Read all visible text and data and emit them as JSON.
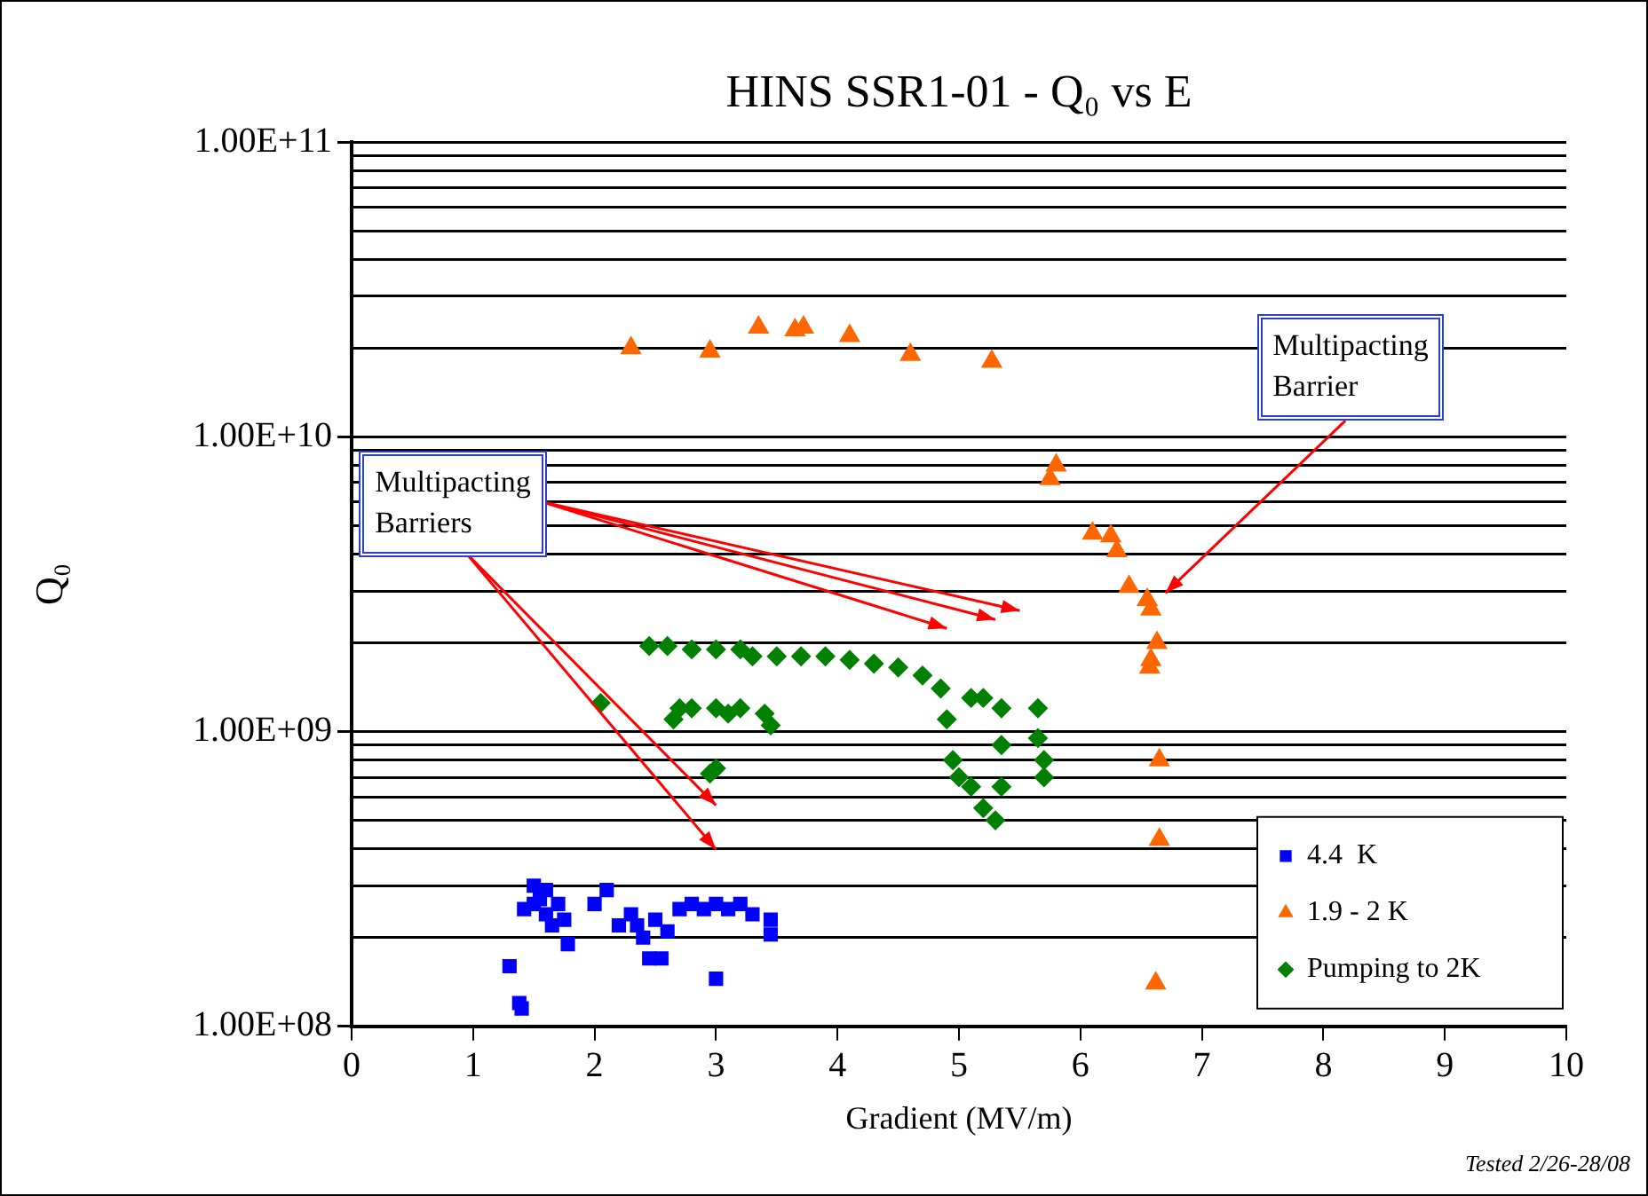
{
  "chart_data": {
    "type": "scatter",
    "title": "HINS SSR1-01 - Q₀ vs E",
    "xlabel": "Gradient (MV/m)",
    "ylabel": "Q₀",
    "xlim": [
      0,
      10
    ],
    "xticks": [
      0,
      1,
      2,
      3,
      4,
      5,
      6,
      7,
      8,
      9,
      10
    ],
    "ylim": [
      100000000,
      100000000000
    ],
    "yticks": [
      {
        "value": 100000000,
        "label": "1.00E+08"
      },
      {
        "value": 200000000,
        "label": null
      },
      {
        "value": 300000000,
        "label": null
      },
      {
        "value": 400000000,
        "label": null
      },
      {
        "value": 500000000,
        "label": null
      },
      {
        "value": 600000000,
        "label": null
      },
      {
        "value": 700000000,
        "label": null
      },
      {
        "value": 800000000,
        "label": null
      },
      {
        "value": 900000000,
        "label": null
      },
      {
        "value": 1000000000,
        "label": "1.00E+09"
      },
      {
        "value": 2000000000,
        "label": null
      },
      {
        "value": 3000000000,
        "label": null
      },
      {
        "value": 4000000000,
        "label": null
      },
      {
        "value": 5000000000,
        "label": null
      },
      {
        "value": 6000000000,
        "label": null
      },
      {
        "value": 7000000000,
        "label": null
      },
      {
        "value": 8000000000,
        "label": null
      },
      {
        "value": 9000000000,
        "label": null
      },
      {
        "value": 10000000000,
        "label": "1.00E+10"
      },
      {
        "value": 20000000000,
        "label": null
      },
      {
        "value": 30000000000,
        "label": null
      },
      {
        "value": 40000000000,
        "label": null
      },
      {
        "value": 50000000000,
        "label": null
      },
      {
        "value": 60000000000,
        "label": null
      },
      {
        "value": 70000000000,
        "label": null
      },
      {
        "value": 80000000000,
        "label": null
      },
      {
        "value": 90000000000,
        "label": null
      },
      {
        "value": 100000000000,
        "label": "1.00E+11"
      }
    ],
    "log": "y",
    "grid": "y",
    "legend": "bottom right",
    "series": [
      {
        "name": "4.4  K",
        "color": "#0000ff",
        "marker": "square",
        "x": [
          1.3,
          1.38,
          1.4,
          1.42,
          1.5,
          1.5,
          1.55,
          1.6,
          1.6,
          1.65,
          1.7,
          1.75,
          1.78,
          2.0,
          2.1,
          2.2,
          2.3,
          2.35,
          2.4,
          2.45,
          2.5,
          2.55,
          2.6,
          2.7,
          2.8,
          2.9,
          3.0,
          3.0,
          3.1,
          3.2,
          3.3,
          3.45,
          3.45
        ],
        "values": [
          160000000,
          120000000,
          115000000,
          250000000,
          260000000,
          300000000,
          270000000,
          240000000,
          290000000,
          220000000,
          260000000,
          230000000,
          190000000,
          260000000,
          290000000,
          220000000,
          240000000,
          220000000,
          200000000,
          170000000,
          230000000,
          170000000,
          210000000,
          250000000,
          260000000,
          250000000,
          145000000,
          260000000,
          250000000,
          260000000,
          240000000,
          230000000,
          205000000
        ]
      },
      {
        "name": "1.9 - 2 K",
        "color": "#ff6600",
        "marker": "triangle",
        "x": [
          2.3,
          2.95,
          3.35,
          3.65,
          3.72,
          4.1,
          4.6,
          5.27,
          5.75,
          5.8,
          6.1,
          6.25,
          6.3,
          6.4,
          6.55,
          6.58,
          6.63,
          6.58,
          6.57,
          6.65,
          6.65,
          6.62
        ],
        "values": [
          20000000000,
          19500000000,
          23500000000,
          23000000000,
          23500000000,
          22000000000,
          19000000000,
          18000000000,
          7200000000,
          8000000000,
          4700000000,
          4600000000,
          4100000000,
          3100000000,
          2800000000,
          2600000000,
          2000000000,
          1750000000,
          1650000000,
          800000000,
          430000000,
          140000000
        ]
      },
      {
        "name": "Pumping to 2K",
        "color": "#008000",
        "marker": "diamond",
        "x": [
          2.05,
          2.45,
          2.6,
          2.8,
          3.0,
          3.2,
          3.3,
          3.5,
          3.7,
          3.9,
          4.1,
          4.3,
          4.5,
          4.7,
          4.85,
          4.9,
          4.95,
          5.0,
          5.1,
          5.2,
          5.3,
          5.35,
          5.35,
          5.35,
          5.2,
          5.1,
          2.65,
          2.7,
          2.8,
          3.0,
          3.1,
          3.2,
          3.4,
          3.45,
          3.0,
          2.95,
          5.65,
          5.65,
          5.7,
          5.7
        ],
        "values": [
          1250000000,
          1950000000,
          1950000000,
          1900000000,
          1900000000,
          1900000000,
          1800000000,
          1800000000,
          1800000000,
          1800000000,
          1750000000,
          1700000000,
          1650000000,
          1550000000,
          1400000000,
          1100000000,
          800000000,
          700000000,
          650000000,
          550000000,
          500000000,
          650000000,
          900000000,
          1200000000,
          1300000000,
          1300000000,
          1100000000,
          1200000000,
          1200000000,
          1200000000,
          1150000000,
          1200000000,
          1150000000,
          1050000000,
          750000000,
          720000000,
          1200000000,
          950000000,
          800000000,
          700000000
        ]
      }
    ],
    "annotations": [
      "Multipacting Barriers",
      "Multipacting Barrier",
      "Tested 2/26-28/08"
    ]
  }
}
